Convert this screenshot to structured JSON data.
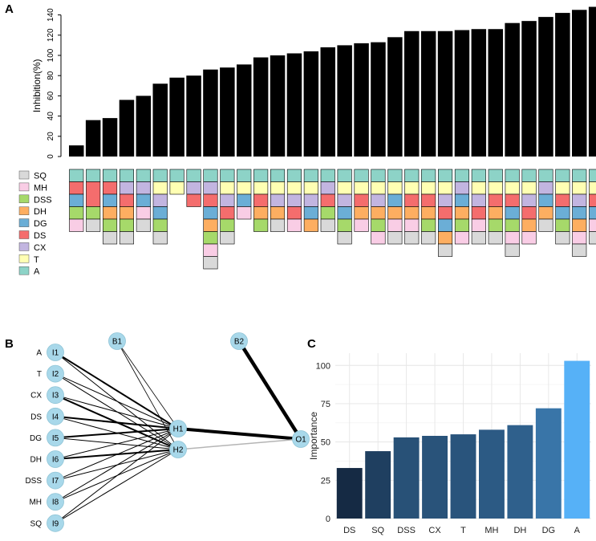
{
  "panel_labels": {
    "a": "A",
    "b": "B",
    "c": "C"
  },
  "colors": {
    "SQ": "#d9d9d9",
    "MH": "#f9cde5",
    "DSS": "#a6d96a",
    "DH": "#fdae61",
    "DG": "#6baed6",
    "DS": "#f46d6d",
    "CX": "#c2b5e0",
    "T": "#ffffb3",
    "A": "#8dd3c7",
    "bar": "#000000",
    "nodeFill": "#a8d8ea",
    "importance_dark": "#152a44",
    "importance_light": "#56b1f7"
  },
  "chart_data": [
    {
      "type": "bar",
      "panel": "A",
      "ylabel": "Inhibition(%)",
      "ylim": [
        0,
        150
      ],
      "yticks": [
        0,
        20,
        40,
        60,
        80,
        100,
        120,
        140
      ],
      "values": [
        11,
        36,
        38,
        56,
        60,
        72,
        78,
        80,
        86,
        88,
        91,
        98,
        100,
        102,
        104,
        108,
        110,
        112,
        113,
        118,
        124,
        124,
        124,
        125,
        126,
        126,
        132,
        134,
        138,
        142,
        145,
        148
      ],
      "legend": [
        "SQ",
        "MH",
        "DSS",
        "DH",
        "DG",
        "DS",
        "CX",
        "T",
        "A"
      ],
      "composition_order_top_to_bottom": [
        "A",
        "T",
        "CX",
        "DS",
        "DG",
        "DH",
        "DSS",
        "MH",
        "SQ"
      ],
      "composition": [
        {
          "A": 1,
          "T": 0,
          "CX": 0,
          "DS": 1,
          "DG": 1,
          "DH": 0,
          "DSS": 1,
          "MH": 1,
          "SQ": 0
        },
        {
          "A": 1,
          "T": 0,
          "CX": 0,
          "DS": 2,
          "DG": 0,
          "DH": 0,
          "DSS": 1,
          "MH": 0,
          "SQ": 1
        },
        {
          "A": 1,
          "T": 0,
          "CX": 0,
          "DS": 1,
          "DG": 1,
          "DH": 1,
          "DSS": 1,
          "MH": 0,
          "SQ": 1
        },
        {
          "A": 1,
          "T": 0,
          "CX": 1,
          "DS": 1,
          "DG": 0,
          "DH": 1,
          "DSS": 1,
          "MH": 0,
          "SQ": 1
        },
        {
          "A": 1,
          "T": 0,
          "CX": 1,
          "DS": 0,
          "DG": 1,
          "DH": 0,
          "DSS": 0,
          "MH": 1,
          "SQ": 1
        },
        {
          "A": 1,
          "T": 1,
          "CX": 1,
          "DS": 0,
          "DG": 1,
          "DH": 0,
          "DSS": 1,
          "MH": 0,
          "SQ": 1
        },
        {
          "A": 1,
          "T": 1,
          "CX": 0,
          "DS": 0,
          "DG": 0,
          "DH": 0,
          "DSS": 0,
          "MH": 0,
          "SQ": 0
        },
        {
          "A": 1,
          "T": 0,
          "CX": 1,
          "DS": 1,
          "DG": 0,
          "DH": 0,
          "DSS": 0,
          "MH": 0,
          "SQ": 0
        },
        {
          "A": 1,
          "T": 0,
          "CX": 1,
          "DS": 1,
          "DG": 1,
          "DH": 1,
          "DSS": 1,
          "MH": 1,
          "SQ": 1
        },
        {
          "A": 1,
          "T": 1,
          "CX": 1,
          "DS": 1,
          "DG": 0,
          "DH": 0,
          "DSS": 1,
          "MH": 0,
          "SQ": 1
        },
        {
          "A": 1,
          "T": 1,
          "CX": 0,
          "DS": 0,
          "DG": 1,
          "DH": 0,
          "DSS": 0,
          "MH": 1,
          "SQ": 0
        },
        {
          "A": 1,
          "T": 1,
          "CX": 0,
          "DS": 1,
          "DG": 0,
          "DH": 1,
          "DSS": 1,
          "MH": 0,
          "SQ": 0
        },
        {
          "A": 1,
          "T": 1,
          "CX": 1,
          "DS": 0,
          "DG": 0,
          "DH": 1,
          "DSS": 0,
          "MH": 0,
          "SQ": 1
        },
        {
          "A": 1,
          "T": 1,
          "CX": 1,
          "DS": 1,
          "DG": 0,
          "DH": 0,
          "DSS": 0,
          "MH": 1,
          "SQ": 0
        },
        {
          "A": 1,
          "T": 1,
          "CX": 1,
          "DS": 0,
          "DG": 1,
          "DH": 1,
          "DSS": 0,
          "MH": 0,
          "SQ": 0
        },
        {
          "A": 1,
          "T": 0,
          "CX": 1,
          "DS": 1,
          "DG": 0,
          "DH": 0,
          "DSS": 1,
          "MH": 0,
          "SQ": 1
        },
        {
          "A": 1,
          "T": 1,
          "CX": 1,
          "DS": 0,
          "DG": 1,
          "DH": 0,
          "DSS": 1,
          "MH": 0,
          "SQ": 1
        },
        {
          "A": 1,
          "T": 1,
          "CX": 0,
          "DS": 1,
          "DG": 0,
          "DH": 1,
          "DSS": 0,
          "MH": 1,
          "SQ": 0
        },
        {
          "A": 1,
          "T": 1,
          "CX": 1,
          "DS": 0,
          "DG": 0,
          "DH": 1,
          "DSS": 1,
          "MH": 1,
          "SQ": 0
        },
        {
          "A": 1,
          "T": 1,
          "CX": 0,
          "DS": 0,
          "DG": 1,
          "DH": 1,
          "DSS": 0,
          "MH": 1,
          "SQ": 1
        },
        {
          "A": 1,
          "T": 1,
          "CX": 0,
          "DS": 1,
          "DG": 0,
          "DH": 1,
          "DSS": 0,
          "MH": 1,
          "SQ": 1
        },
        {
          "A": 1,
          "T": 1,
          "CX": 0,
          "DS": 1,
          "DG": 0,
          "DH": 1,
          "DSS": 1,
          "MH": 0,
          "SQ": 1
        },
        {
          "A": 1,
          "T": 1,
          "CX": 1,
          "DS": 1,
          "DG": 1,
          "DH": 1,
          "DSS": 0,
          "MH": 0,
          "SQ": 1
        },
        {
          "A": 1,
          "T": 0,
          "CX": 1,
          "DS": 0,
          "DG": 1,
          "DH": 1,
          "DSS": 1,
          "MH": 1,
          "SQ": 0
        },
        {
          "A": 1,
          "T": 1,
          "CX": 1,
          "DS": 1,
          "DG": 0,
          "DH": 0,
          "DSS": 0,
          "MH": 1,
          "SQ": 1
        },
        {
          "A": 1,
          "T": 1,
          "CX": 0,
          "DS": 1,
          "DG": 0,
          "DH": 1,
          "DSS": 1,
          "MH": 0,
          "SQ": 1
        },
        {
          "A": 1,
          "T": 1,
          "CX": 0,
          "DS": 1,
          "DG": 1,
          "DH": 0,
          "DSS": 1,
          "MH": 1,
          "SQ": 1
        },
        {
          "A": 1,
          "T": 1,
          "CX": 1,
          "DS": 1,
          "DG": 0,
          "DH": 1,
          "DSS": 0,
          "MH": 1,
          "SQ": 0
        },
        {
          "A": 1,
          "T": 0,
          "CX": 1,
          "DS": 0,
          "DG": 1,
          "DH": 1,
          "DSS": 0,
          "MH": 0,
          "SQ": 1
        },
        {
          "A": 1,
          "T": 1,
          "CX": 0,
          "DS": 1,
          "DG": 1,
          "DH": 0,
          "DSS": 1,
          "MH": 0,
          "SQ": 1
        },
        {
          "A": 1,
          "T": 1,
          "CX": 1,
          "DS": 0,
          "DG": 1,
          "DH": 1,
          "DSS": 0,
          "MH": 1,
          "SQ": 1
        },
        {
          "A": 1,
          "T": 1,
          "CX": 0,
          "DS": 1,
          "DG": 1,
          "DH": 0,
          "DSS": 0,
          "MH": 1,
          "SQ": 1
        }
      ]
    },
    {
      "type": "network",
      "panel": "B",
      "inputs": [
        {
          "id": "I1",
          "label": "A"
        },
        {
          "id": "I2",
          "label": "T"
        },
        {
          "id": "I3",
          "label": "CX"
        },
        {
          "id": "I4",
          "label": "DS"
        },
        {
          "id": "I5",
          "label": "DG"
        },
        {
          "id": "I6",
          "label": "DH"
        },
        {
          "id": "I7",
          "label": "DSS"
        },
        {
          "id": "I8",
          "label": "MH"
        },
        {
          "id": "I9",
          "label": "SQ"
        }
      ],
      "bias": [
        "B1",
        "B2"
      ],
      "hidden": [
        "H1",
        "H2"
      ],
      "output": "O1",
      "edges": [
        {
          "from": "I1",
          "to": "H1",
          "w": 2
        },
        {
          "from": "I1",
          "to": "H2",
          "w": 1
        },
        {
          "from": "I2",
          "to": "H1",
          "w": 1
        },
        {
          "from": "I2",
          "to": "H2",
          "w": 1
        },
        {
          "from": "I3",
          "to": "H1",
          "w": 1
        },
        {
          "from": "I3",
          "to": "H2",
          "w": 2
        },
        {
          "from": "I4",
          "to": "H1",
          "w": 2
        },
        {
          "from": "I4",
          "to": "H2",
          "w": 1
        },
        {
          "from": "I5",
          "to": "H1",
          "w": 2
        },
        {
          "from": "I5",
          "to": "H2",
          "w": 1
        },
        {
          "from": "I6",
          "to": "H1",
          "w": 1
        },
        {
          "from": "I6",
          "to": "H2",
          "w": 2
        },
        {
          "from": "I7",
          "to": "H1",
          "w": 1
        },
        {
          "from": "I7",
          "to": "H2",
          "w": 1
        },
        {
          "from": "I8",
          "to": "H1",
          "w": 1
        },
        {
          "from": "I8",
          "to": "H2",
          "w": 1
        },
        {
          "from": "I9",
          "to": "H1",
          "w": 1
        },
        {
          "from": "I9",
          "to": "H2",
          "w": 1
        },
        {
          "from": "B1",
          "to": "H1",
          "w": 0.8
        },
        {
          "from": "B1",
          "to": "H2",
          "w": 0.8
        },
        {
          "from": "H1",
          "to": "O1",
          "w": 4
        },
        {
          "from": "H2",
          "to": "O1",
          "w": 1.5,
          "grey": true
        },
        {
          "from": "B2",
          "to": "O1",
          "w": 4.5
        }
      ]
    },
    {
      "type": "bar",
      "panel": "C",
      "ylabel": "Importance",
      "xlabel": "",
      "categories": [
        "DS",
        "SQ",
        "DSS",
        "CX",
        "T",
        "MH",
        "DH",
        "DG",
        "A"
      ],
      "values": [
        33,
        44,
        53,
        54,
        55,
        58,
        61,
        72,
        103
      ],
      "ylim": [
        0,
        108
      ],
      "yticks": [
        0,
        25,
        50,
        75,
        100
      ]
    }
  ]
}
